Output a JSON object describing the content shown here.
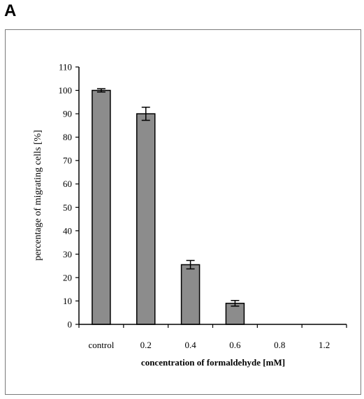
{
  "panel_label": "A",
  "chart_data": {
    "type": "bar",
    "categories": [
      "control",
      "0.2",
      "0.4",
      "0.6",
      "0.8",
      "1.2"
    ],
    "values": [
      100,
      90,
      25.5,
      9,
      0,
      0
    ],
    "errors": [
      0.7,
      2.8,
      1.8,
      1.2,
      0,
      0
    ],
    "xlabel": "concentration of formaldehyde [mM]",
    "ylabel": "percentage of migrating cells [%]",
    "ylim": [
      0,
      110
    ],
    "yticks": [
      0,
      10,
      20,
      30,
      40,
      50,
      60,
      70,
      80,
      90,
      100,
      110
    ],
    "bar_color": "#8c8c8c",
    "grid": false
  }
}
